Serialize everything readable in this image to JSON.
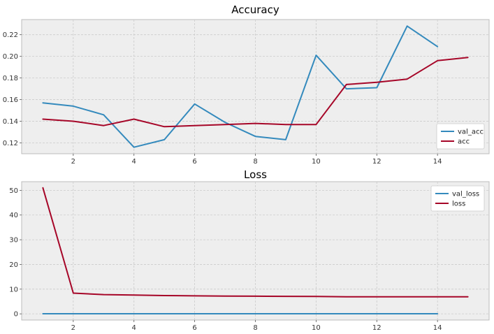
{
  "chart_data": [
    {
      "type": "line",
      "title": "Accuracy",
      "xlabel": "",
      "ylabel": "",
      "xlim": [
        0.3,
        15.7
      ],
      "ylim": [
        0.11,
        0.234
      ],
      "xticks": [
        2,
        4,
        6,
        8,
        10,
        12,
        14
      ],
      "yticks": [
        0.12,
        0.14,
        0.16,
        0.18,
        0.2,
        0.22
      ],
      "ytick_labels": [
        "0.12",
        "0.14",
        "0.16",
        "0.18",
        "0.20",
        "0.22"
      ],
      "grid": true,
      "legend_position": "lower-right",
      "series": [
        {
          "name": "val_acc",
          "color": "#348ABD",
          "x": [
            1,
            2,
            3,
            4,
            5,
            6,
            7,
            8,
            9,
            10,
            11,
            12,
            13,
            14
          ],
          "values": [
            0.157,
            0.154,
            0.146,
            0.116,
            0.123,
            0.156,
            0.139,
            0.126,
            0.123,
            0.201,
            0.17,
            0.171,
            0.228,
            0.209
          ]
        },
        {
          "name": "acc",
          "color": "#A60628",
          "x": [
            1,
            2,
            3,
            4,
            5,
            6,
            7,
            8,
            9,
            10,
            11,
            12,
            13,
            14,
            15
          ],
          "values": [
            0.142,
            0.14,
            0.136,
            0.142,
            0.135,
            0.136,
            0.137,
            0.138,
            0.137,
            0.137,
            0.174,
            0.176,
            0.179,
            0.196,
            0.199
          ]
        }
      ]
    },
    {
      "type": "line",
      "title": "Loss",
      "xlabel": "",
      "ylabel": "",
      "xlim": [
        0.3,
        15.7
      ],
      "ylim": [
        -2.5,
        53.5
      ],
      "xticks": [
        2,
        4,
        6,
        8,
        10,
        12,
        14
      ],
      "yticks": [
        0,
        10,
        20,
        30,
        40,
        50
      ],
      "ytick_labels": [
        "0",
        "10",
        "20",
        "30",
        "40",
        "50"
      ],
      "grid": true,
      "legend_position": "upper-right",
      "series": [
        {
          "name": "val_loss",
          "color": "#348ABD",
          "x": [
            1,
            2,
            3,
            4,
            5,
            6,
            7,
            8,
            9,
            10,
            11,
            12,
            13,
            14
          ],
          "values": [
            0.05,
            0.05,
            0.05,
            0.05,
            0.05,
            0.05,
            0.05,
            0.05,
            0.05,
            0.05,
            0.05,
            0.05,
            0.05,
            0.05
          ]
        },
        {
          "name": "loss",
          "color": "#A60628",
          "x": [
            1,
            2,
            3,
            4,
            5,
            6,
            7,
            8,
            9,
            10,
            11,
            12,
            13,
            14,
            15
          ],
          "values": [
            51.0,
            8.4,
            7.8,
            7.6,
            7.4,
            7.3,
            7.2,
            7.15,
            7.1,
            7.05,
            6.9,
            6.9,
            6.9,
            6.9,
            6.9
          ]
        }
      ]
    }
  ]
}
